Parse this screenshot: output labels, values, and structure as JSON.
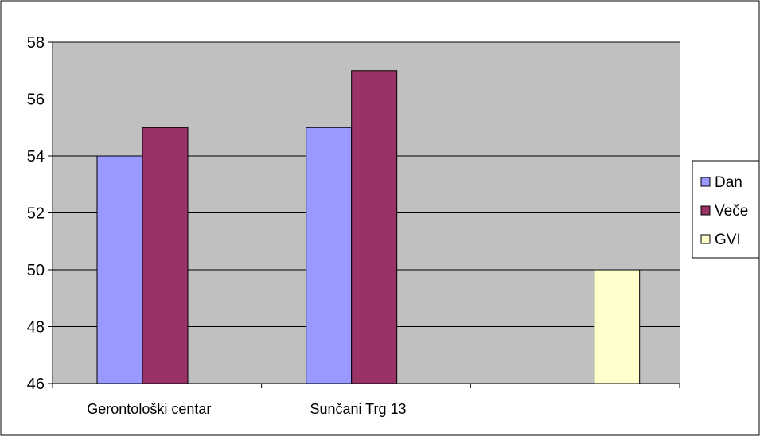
{
  "chart_data": {
    "type": "bar",
    "title": "",
    "xlabel": "",
    "ylabel": "",
    "categories": [
      "Gerontološki centar",
      "Sunčani Trg 13",
      ""
    ],
    "series": [
      {
        "name": "Dan",
        "values": [
          54,
          55,
          null
        ]
      },
      {
        "name": "Veče",
        "values": [
          55,
          57,
          null
        ]
      },
      {
        "name": "GVI",
        "values": [
          null,
          null,
          50
        ]
      }
    ],
    "ylim": [
      46,
      58
    ],
    "yticks": [
      46,
      48,
      50,
      52,
      54,
      56,
      58
    ],
    "grid": true,
    "legend_position": "right",
    "colors": {
      "Dan": "#9999ff",
      "Veče": "#993366",
      "GVI": "#ffffcc",
      "plot_background": "#c0c0c0",
      "gridline": "#000000"
    }
  }
}
